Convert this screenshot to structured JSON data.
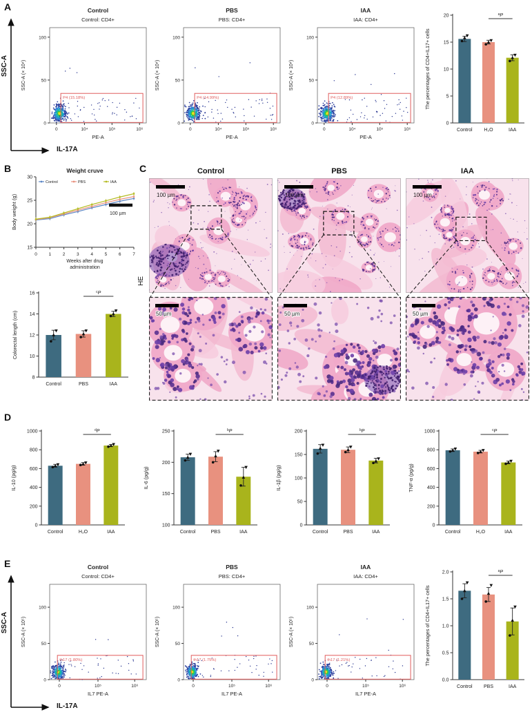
{
  "figure": {
    "background": "#ffffff",
    "colors": {
      "bar_control": "#3e6b80",
      "bar_mid": "#e8917f",
      "bar_iaa": "#a9b41c",
      "gate": "#e05c5c",
      "axis": "#333333",
      "line_control": "#5b86c5",
      "line_pbs": "#e8917f",
      "line_iaa": "#b4bb22"
    }
  },
  "panels": {
    "A": {
      "label": "A",
      "axis_arrow_y": "SSC-A",
      "axis_arrow_x": "IL-17A",
      "flow": {
        "ylabel": "SSC-A  (× 10⁴)",
        "xlabel": "PE-A",
        "yticks": [
          "0",
          "50",
          "100"
        ],
        "xticks": [
          "0",
          "10⁴",
          "10⁵",
          "10⁶"
        ],
        "plots": [
          {
            "title": "Control",
            "subtitle": "Control: CD4+",
            "gate_label": "P4 (15.18%)"
          },
          {
            "title": "PBS",
            "subtitle": "PBS: CD4+",
            "gate_label": "P4 (14.99%)"
          },
          {
            "title": "IAA",
            "subtitle": "IAA: CD4+",
            "gate_label": "P4 (12.89%)"
          }
        ]
      }
    },
    "B": {
      "label": "B"
    },
    "C": {
      "label": "C",
      "row_label": "HE",
      "columns": [
        "Control",
        "PBS",
        "IAA"
      ],
      "scale_top": "100 µm",
      "scale_bottom": "50 µm"
    },
    "D": {
      "label": "D"
    },
    "E": {
      "label": "E",
      "axis_arrow_y": "SSC-A",
      "axis_arrow_x": "IL-17A",
      "flow": {
        "ylabel": "SSC-A  (× 10⁵)",
        "xlabel": "IL7 PE-A",
        "yticks": [
          "0",
          "50",
          "100"
        ],
        "xticks": [
          "0",
          "10⁵",
          "10⁶"
        ],
        "plots": [
          {
            "title": "Control",
            "subtitle": "Control: CD4+",
            "gate_label": "th17 (1.80%)"
          },
          {
            "title": "PBS",
            "subtitle": "PBS: CD4+",
            "gate_label": "th17 (1.75%)"
          },
          {
            "title": "IAA",
            "subtitle": "IAA: CD4+",
            "gate_label": "th17 (1.21%)"
          }
        ]
      }
    }
  },
  "chart_data": [
    {
      "id": "A-bar",
      "type": "bar",
      "ylabel": "The percentages of CD4+IL17+ cells",
      "categories": [
        "Control",
        "H₂O",
        "IAA"
      ],
      "values": [
        15.6,
        15.0,
        12.1
      ],
      "points": [
        [
          15.2,
          15.8,
          16.2
        ],
        [
          14.6,
          15.0,
          15.3
        ],
        [
          11.5,
          12.1,
          12.6
        ]
      ],
      "errors": [
        0.5,
        0.35,
        0.55
      ],
      "ylim": [
        0,
        20
      ],
      "yticks": [
        "0",
        "5",
        "10",
        "15",
        "20"
      ],
      "sig": {
        "sup": "a",
        "label": "P",
        "from": 1,
        "to": 2
      }
    },
    {
      "id": "B-line",
      "type": "line",
      "title": "Weight cruve",
      "ylabel": "Body weight (g)",
      "xlabel_lines": [
        "Weeks after drug",
        "administration"
      ],
      "x": [
        "0",
        "1",
        "2",
        "3",
        "4",
        "5",
        "6",
        "7"
      ],
      "series": [
        {
          "name": "Control",
          "values": [
            20.8,
            21.1,
            21.9,
            22.6,
            23.4,
            24.1,
            24.8,
            25.4
          ]
        },
        {
          "name": "PBS",
          "values": [
            20.9,
            21.3,
            22.1,
            22.9,
            23.7,
            24.5,
            25.2,
            25.8
          ]
        },
        {
          "name": "IAA",
          "values": [
            21.0,
            21.4,
            22.3,
            23.2,
            24.1,
            24.9,
            25.7,
            26.4
          ]
        }
      ],
      "ylim": [
        15,
        30
      ],
      "yticks": [
        "15",
        "20",
        "25",
        "30"
      ],
      "annotation": "100 µm"
    },
    {
      "id": "B-bar",
      "type": "bar",
      "ylabel": "Colorectal length (cm)",
      "categories": [
        "Control",
        "PBS",
        "IAA"
      ],
      "values": [
        12.0,
        12.1,
        14.0
      ],
      "points": [
        [
          11.4,
          12.0,
          12.4
        ],
        [
          11.8,
          12.1,
          12.4
        ],
        [
          13.8,
          14.0,
          14.3
        ]
      ],
      "errors": [
        0.45,
        0.3,
        0.25
      ],
      "ylim": [
        8,
        16
      ],
      "yticks": [
        "8",
        "10",
        "12",
        "14",
        "16"
      ],
      "sig": {
        "sup": "c",
        "label": "P",
        "from": 1,
        "to": 2
      }
    },
    {
      "id": "D1",
      "type": "bar",
      "ylabel": "IL-10 (pg/g)",
      "categories": [
        "Control",
        "H₂O",
        "IAA"
      ],
      "values": [
        630,
        650,
        845
      ],
      "points": [
        [
          615,
          630,
          642
        ],
        [
          638,
          650,
          662
        ],
        [
          833,
          845,
          857
        ]
      ],
      "errors": [
        15,
        14,
        12
      ],
      "ylim": [
        0,
        1000
      ],
      "yticks": [
        "0",
        "200",
        "400",
        "600",
        "800",
        "1000"
      ],
      "sig": {
        "sup": "d",
        "label": "P",
        "from": 1,
        "to": 2
      }
    },
    {
      "id": "D2",
      "type": "bar",
      "ylabel": "IL-6 (pg/g)",
      "categories": [
        "Control",
        "PBS",
        "IAA"
      ],
      "values": [
        208,
        209,
        177
      ],
      "points": [
        [
          203,
          208,
          213
        ],
        [
          200,
          210,
          218
        ],
        [
          163,
          176,
          192
        ]
      ],
      "errors": [
        5,
        8,
        15
      ],
      "ylim": [
        100,
        250
      ],
      "yticks": [
        "100",
        "150",
        "200",
        "250"
      ],
      "sig": {
        "sup": "b",
        "label": "P",
        "from": 1,
        "to": 2
      }
    },
    {
      "id": "D3",
      "type": "bar",
      "ylabel": "IL-1β (pg/g)",
      "categories": [
        "Control",
        "PBS",
        "IAA"
      ],
      "values": [
        162,
        160,
        137
      ],
      "points": [
        [
          152,
          163,
          170
        ],
        [
          155,
          160,
          166
        ],
        [
          132,
          136,
          141
        ]
      ],
      "errors": [
        9,
        6,
        5
      ],
      "ylim": [
        0,
        200
      ],
      "yticks": [
        "0",
        "50",
        "100",
        "150",
        "200"
      ],
      "sig": {
        "sup": "b",
        "label": "P",
        "from": 1,
        "to": 2
      }
    },
    {
      "id": "D4",
      "type": "bar",
      "ylabel": "TNF-α (pg/g)",
      "categories": [
        "Control",
        "H₂O",
        "IAA"
      ],
      "values": [
        795,
        780,
        665
      ],
      "points": [
        [
          782,
          795,
          810
        ],
        [
          766,
          780,
          794
        ],
        [
          651,
          665,
          679
        ]
      ],
      "errors": [
        14,
        14,
        14
      ],
      "ylim": [
        0,
        1000
      ],
      "yticks": [
        "0",
        "200",
        "400",
        "600",
        "800",
        "1000"
      ],
      "sig": {
        "sup": "c",
        "label": "P",
        "from": 1,
        "to": 2
      }
    },
    {
      "id": "E-bar",
      "type": "bar",
      "ylabel": "The percentages of CD4+IL17+ cells",
      "categories": [
        "Control",
        "PBS",
        "IAA"
      ],
      "values": [
        1.65,
        1.58,
        1.08
      ],
      "points": [
        [
          1.5,
          1.65,
          1.8
        ],
        [
          1.45,
          1.6,
          1.75
        ],
        [
          0.82,
          1.1,
          1.35
        ]
      ],
      "errors": [
        0.13,
        0.13,
        0.25
      ],
      "ylim": [
        0,
        2
      ],
      "yticks": [
        "0.0",
        "0.5",
        "1.0",
        "1.5",
        "2.0"
      ],
      "sig": {
        "sup": "a",
        "label": "P",
        "from": 1,
        "to": 2
      }
    }
  ]
}
